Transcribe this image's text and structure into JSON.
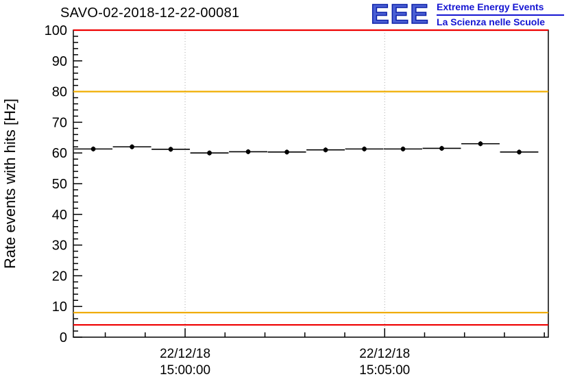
{
  "header": {
    "title": "SAVO-02-2018-12-22-00081",
    "logo": {
      "acronym": "EEE",
      "line1": "Extreme Energy Events",
      "line2": "La Scienza nelle Scuole",
      "acronym_color": "#4a5fd4",
      "acronym_outline": "#0b1fa8",
      "text_color": "#1414d2"
    }
  },
  "chart_data": {
    "type": "scatter",
    "title": "SAVO-02-2018-12-22-00081",
    "xlabel": "",
    "ylabel": "Rate events with hits [Hz]",
    "ylim": [
      0,
      100
    ],
    "y_tick_step": 10,
    "y_minor_step": 2,
    "grid": "vertical dashed lines at major x ticks",
    "xlim_minutes": [
      -2.8,
      9.1
    ],
    "x_ticks": [
      {
        "minute": 0,
        "label_line1": "22/12/18",
        "label_line2": "15:00:00"
      },
      {
        "minute": 5,
        "label_line1": "22/12/18",
        "label_line2": "15:05:00"
      }
    ],
    "x_minor_step_minutes": 1,
    "marker": {
      "shape": "circle",
      "color": "#000000"
    },
    "points": [
      {
        "t_min": -2.3,
        "rate_hz": 61.3,
        "xerr_min": 0.48,
        "yerr_hz": 0.8
      },
      {
        "t_min": -1.33,
        "rate_hz": 62.0,
        "xerr_min": 0.48,
        "yerr_hz": 0.8
      },
      {
        "t_min": -0.36,
        "rate_hz": 61.2,
        "xerr_min": 0.48,
        "yerr_hz": 0.8
      },
      {
        "t_min": 0.61,
        "rate_hz": 60.0,
        "xerr_min": 0.48,
        "yerr_hz": 0.8
      },
      {
        "t_min": 1.58,
        "rate_hz": 60.4,
        "xerr_min": 0.48,
        "yerr_hz": 0.8
      },
      {
        "t_min": 2.55,
        "rate_hz": 60.3,
        "xerr_min": 0.48,
        "yerr_hz": 0.8
      },
      {
        "t_min": 3.52,
        "rate_hz": 61.0,
        "xerr_min": 0.48,
        "yerr_hz": 0.8
      },
      {
        "t_min": 4.49,
        "rate_hz": 61.3,
        "xerr_min": 0.48,
        "yerr_hz": 0.8
      },
      {
        "t_min": 5.46,
        "rate_hz": 61.3,
        "xerr_min": 0.48,
        "yerr_hz": 0.8
      },
      {
        "t_min": 6.43,
        "rate_hz": 61.5,
        "xerr_min": 0.48,
        "yerr_hz": 0.8
      },
      {
        "t_min": 7.4,
        "rate_hz": 63.0,
        "xerr_min": 0.48,
        "yerr_hz": 0.8
      },
      {
        "t_min": 8.37,
        "rate_hz": 60.3,
        "xerr_min": 0.48,
        "yerr_hz": 0.8
      }
    ],
    "thresholds": [
      {
        "name": "alarm-high",
        "value_hz": 100,
        "color": "#ee0000"
      },
      {
        "name": "warning-high",
        "value_hz": 80,
        "color": "#f0ad00"
      },
      {
        "name": "warning-low",
        "value_hz": 8,
        "color": "#f0ad00"
      },
      {
        "name": "alarm-low",
        "value_hz": 4,
        "color": "#ee0000"
      }
    ]
  }
}
